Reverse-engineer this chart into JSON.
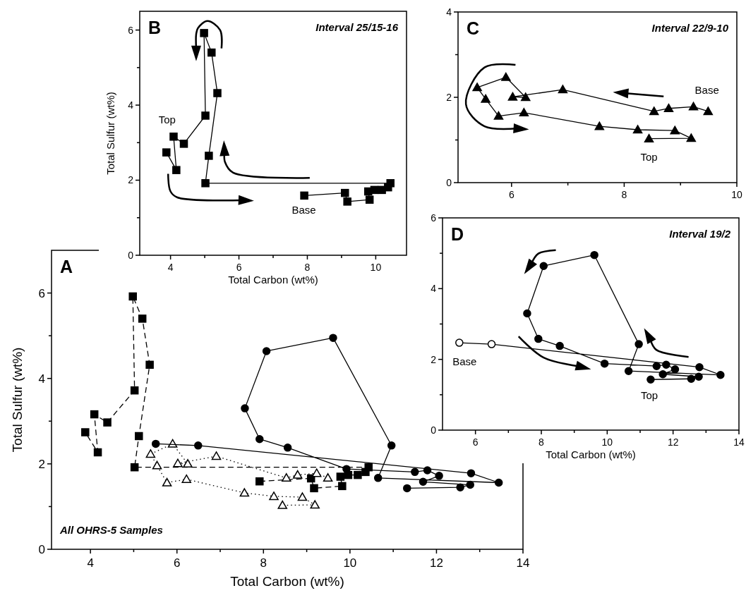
{
  "chart_data": [
    {
      "type": "line",
      "title": "A",
      "subtitle": "All OHRS-5 Samples",
      "xlabel": "Total Carbon  (wt%)",
      "ylabel": "Total Sulfur  (wt%)",
      "xlim": [
        3.1,
        14
      ],
      "ylim": [
        0,
        7
      ],
      "xticks": [
        4,
        {
          "value": 5,
          "label": null
        },
        6,
        {
          "value": 7,
          "label": null
        },
        8,
        {
          "value": 9,
          "label": null
        },
        10,
        {
          "value": 11,
          "label": null
        },
        12,
        {
          "value": 13,
          "label": null
        },
        14
      ],
      "yticks": [
        0,
        {
          "value": 1,
          "label": null
        },
        2,
        {
          "value": 3,
          "label": null
        },
        4,
        {
          "value": 5,
          "label": null
        },
        6
      ],
      "series": [
        {
          "color": "#000000",
          "marker": "square",
          "line_style": "dashed",
          "x": [
            7.91,
            9.1,
            9.17,
            9.82,
            9.78,
            9.96,
            10.18,
            10.36,
            10.43,
            5.02,
            5.12,
            5.37,
            5.2,
            4.98,
            5.02,
            4.39,
            4.09,
            4.17,
            3.88
          ],
          "values": [
            1.59,
            1.66,
            1.43,
            1.48,
            1.7,
            1.74,
            1.74,
            1.81,
            1.92,
            1.92,
            2.65,
            4.32,
            5.4,
            5.92,
            3.72,
            2.97,
            3.16,
            2.27,
            2.74
          ]
        },
        {
          "color": "#000000",
          "colors": [
            "#ffffff",
            "#ffffff",
            "#ffffff",
            "#ffffff",
            "#ffffff",
            "#ffffff",
            "#ffffff",
            "#ffffff",
            "#ffffff",
            "#ffffff",
            "#ffffff",
            "#ffffff",
            "#ffffff",
            "#ffffff",
            "#ffffff",
            "#ffffff",
            "#ffffff"
          ],
          "marker": "triangle",
          "line_style": "dotted",
          "x": [
            9.49,
            9.23,
            8.79,
            8.53,
            6.91,
            6.02,
            6.25,
            5.9,
            5.39,
            5.54,
            5.77,
            6.22,
            7.56,
            8.24,
            8.9,
            9.19,
            8.44
          ],
          "values": [
            1.67,
            1.78,
            1.74,
            1.67,
            2.18,
            2.01,
            2.0,
            2.47,
            2.23,
            1.96,
            1.56,
            1.64,
            1.32,
            1.24,
            1.22,
            1.04,
            1.03
          ]
        },
        {
          "color": "#000000",
          "marker": "circle",
          "line_style": "solid",
          "x": [
            5.51,
            6.49,
            12.8,
            13.44,
            10.65,
            10.96,
            9.61,
            8.07,
            7.57,
            7.91,
            8.56,
            9.92,
            11.5,
            11.79,
            12.06,
            11.69,
            12.78,
            12.55,
            11.32
          ],
          "values": [
            2.47,
            2.43,
            1.78,
            1.56,
            1.67,
            2.43,
            4.95,
            4.64,
            3.3,
            2.58,
            2.38,
            1.88,
            1.81,
            1.85,
            1.72,
            1.58,
            1.51,
            1.45,
            1.43
          ]
        }
      ]
    },
    {
      "type": "line",
      "title": "B",
      "subtitle": "Interval  25/15-16",
      "xlabel": "Total Carbon  (wt%)",
      "ylabel": "Total Sulfur  (wt%)",
      "xlim": [
        3.1,
        10.9
      ],
      "ylim": [
        0,
        6.5
      ],
      "xticks": [
        4,
        {
          "value": 5,
          "label": null
        },
        6,
        {
          "value": 7,
          "label": null
        },
        8,
        {
          "value": 9,
          "label": null
        },
        10
      ],
      "yticks": [
        0,
        {
          "value": 1,
          "label": null
        },
        2,
        {
          "value": 3,
          "label": null
        },
        4,
        {
          "value": 5,
          "label": null
        },
        6
      ],
      "annotations": [
        "Top",
        "Base"
      ],
      "series": [
        {
          "color": "#000000",
          "marker": "square",
          "line_style": "solid",
          "x": [
            7.91,
            9.1,
            9.17,
            9.82,
            9.78,
            9.96,
            10.18,
            10.36,
            10.43,
            5.02,
            5.12,
            5.37,
            5.2,
            4.98,
            5.02,
            4.39,
            4.09,
            4.17,
            3.88
          ],
          "values": [
            1.59,
            1.66,
            1.43,
            1.48,
            1.7,
            1.74,
            1.74,
            1.81,
            1.92,
            1.92,
            2.65,
            4.32,
            5.4,
            5.92,
            3.72,
            2.97,
            3.16,
            2.27,
            2.74
          ]
        }
      ]
    },
    {
      "type": "line",
      "title": "C",
      "subtitle": "Interval  22/9-10",
      "xlim": [
        5.05,
        10
      ],
      "ylim": [
        0,
        4
      ],
      "xticks": [
        6,
        {
          "value": 7,
          "label": null
        },
        8,
        {
          "value": 9,
          "label": null
        },
        10
      ],
      "yticks": [
        0,
        {
          "value": 1,
          "label": null
        },
        2,
        {
          "value": 3,
          "label": null
        },
        4
      ],
      "annotations": [
        "Base",
        "Top"
      ],
      "series": [
        {
          "color": "#000000",
          "marker": "triangle",
          "line_style": "solid",
          "x": [
            9.49,
            9.23,
            8.79,
            8.53,
            6.91,
            6.02,
            6.25,
            5.9,
            5.39,
            5.54,
            5.77,
            6.22,
            7.56,
            8.24,
            8.9,
            9.19,
            8.44
          ],
          "values": [
            1.67,
            1.78,
            1.74,
            1.67,
            2.18,
            2.01,
            2.0,
            2.47,
            2.23,
            1.96,
            1.56,
            1.64,
            1.32,
            1.24,
            1.22,
            1.04,
            1.03
          ]
        }
      ]
    },
    {
      "type": "line",
      "title": "D",
      "subtitle": "Interval  19/2",
      "xlabel": "Total Carbon  (wt%)",
      "xlim": [
        5,
        14
      ],
      "ylim": [
        0,
        6
      ],
      "xticks": [
        6,
        {
          "value": 7,
          "label": null
        },
        8,
        {
          "value": 9,
          "label": null
        },
        10,
        {
          "value": 11,
          "label": null
        },
        12,
        {
          "value": 13,
          "label": null
        },
        14
      ],
      "yticks": [
        0,
        {
          "value": 1,
          "label": null
        },
        2,
        {
          "value": 3,
          "label": null
        },
        4,
        {
          "value": 5,
          "label": null
        },
        6
      ],
      "annotations": [
        "Base",
        "Top"
      ],
      "series": [
        {
          "color": "#000000",
          "colors": [
            "#ffffff",
            "#ffffff",
            "#000000",
            "#000000",
            "#000000",
            "#000000",
            "#000000",
            "#000000",
            "#000000",
            "#000000",
            "#000000",
            "#000000",
            "#000000",
            "#000000",
            "#000000",
            "#000000",
            "#000000",
            "#000000",
            "#000000"
          ],
          "marker": "circle",
          "line_style": "solid",
          "x": [
            5.51,
            6.49,
            12.8,
            13.44,
            10.65,
            10.96,
            9.61,
            8.07,
            7.57,
            7.91,
            8.56,
            9.92,
            11.5,
            11.79,
            12.06,
            11.69,
            12.78,
            12.55,
            11.32
          ],
          "values": [
            2.47,
            2.43,
            1.78,
            1.56,
            1.67,
            2.43,
            4.95,
            4.64,
            3.3,
            2.58,
            2.38,
            1.88,
            1.81,
            1.85,
            1.72,
            1.58,
            1.51,
            1.45,
            1.43
          ]
        }
      ]
    }
  ]
}
